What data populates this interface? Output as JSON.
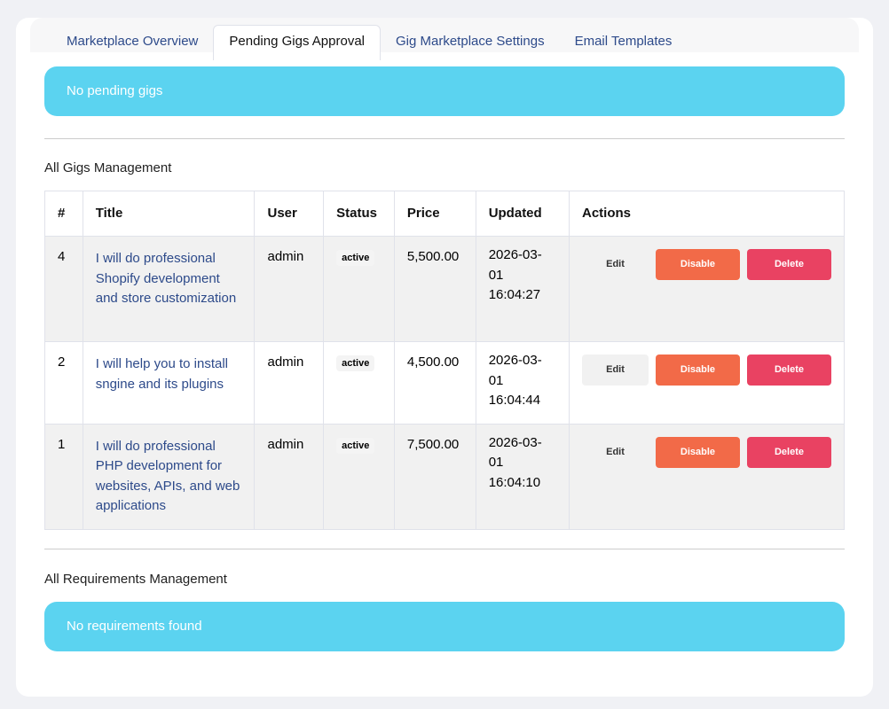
{
  "tabs": [
    "Marketplace Overview",
    "Pending Gigs Approval",
    "Gig Marketplace Settings",
    "Email Templates"
  ],
  "pending_alert": "No pending gigs",
  "gigs_heading": "All Gigs Management",
  "columns": [
    "#",
    "Title",
    "User",
    "Status",
    "Price",
    "Updated",
    "Actions"
  ],
  "rows": [
    {
      "id": "4",
      "title": "I will do professional Shopify development and store customization",
      "user": "admin",
      "status": "active",
      "price": "5,500.00",
      "updated": "2026-03-01 16:04:27"
    },
    {
      "id": "2",
      "title": "I will help you to install sngine and its plugins",
      "user": "admin",
      "status": "active",
      "price": "4,500.00",
      "updated": "2026-03-01 16:04:44"
    },
    {
      "id": "1",
      "title": "I will do professional PHP development for websites, APIs, and web applications",
      "user": "admin",
      "status": "active",
      "price": "7,500.00",
      "updated": "2026-03-01 16:04:10"
    }
  ],
  "actions": {
    "edit": "Edit",
    "disable": "Disable",
    "delete": "Delete"
  },
  "req_heading": "All Requirements Management",
  "req_alert": "No requirements found"
}
